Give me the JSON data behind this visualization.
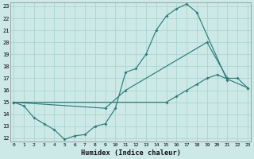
{
  "bg_color": "#cce9e8",
  "grid_color": "#aad4d2",
  "line_color": "#2d7d78",
  "xlim": [
    0,
    23
  ],
  "ylim": [
    12,
    23
  ],
  "xticks": [
    0,
    1,
    2,
    3,
    4,
    5,
    6,
    7,
    8,
    9,
    10,
    11,
    12,
    13,
    14,
    15,
    16,
    17,
    18,
    19,
    20,
    21,
    22,
    23
  ],
  "yticks": [
    12,
    13,
    14,
    15,
    16,
    17,
    18,
    19,
    20,
    21,
    22,
    23
  ],
  "xlabel": "Humidex (Indice chaleur)",
  "line1_x": [
    0,
    1,
    2,
    3,
    4,
    5,
    6,
    7,
    8,
    9,
    10,
    11,
    12,
    13,
    14,
    15,
    16,
    17,
    18,
    21
  ],
  "line1_y": [
    15.0,
    14.7,
    13.7,
    13.2,
    12.7,
    11.9,
    12.2,
    12.3,
    13.0,
    13.2,
    14.5,
    17.5,
    17.8,
    19.0,
    21.0,
    22.2,
    22.8,
    23.2,
    22.5,
    16.8
  ],
  "line2_x": [
    0,
    9,
    11,
    19,
    21,
    22,
    23
  ],
  "line2_y": [
    15.0,
    14.5,
    16.0,
    20.0,
    17.0,
    17.0,
    16.2
  ],
  "line3_x": [
    0,
    15,
    16,
    17,
    18,
    19,
    20,
    23
  ],
  "line3_y": [
    15.0,
    15.0,
    15.5,
    16.0,
    16.5,
    17.0,
    17.3,
    16.2
  ]
}
